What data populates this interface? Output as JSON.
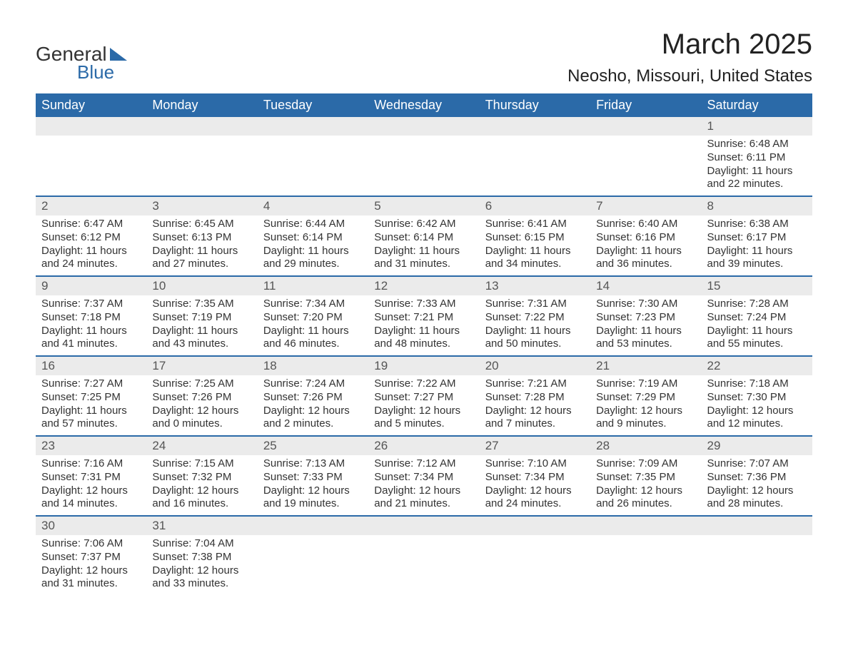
{
  "logo": {
    "word1": "General",
    "word2": "Blue",
    "brand_color": "#2b6aa8",
    "text_color": "#333333"
  },
  "header": {
    "title": "March 2025",
    "location": "Neosho, Missouri, United States"
  },
  "calendar": {
    "header_bg": "#2b6aa8",
    "header_fg": "#ffffff",
    "daynum_bg": "#ebebeb",
    "row_border": "#2b6aa8",
    "body_fg": "#333333",
    "columns": [
      "Sunday",
      "Monday",
      "Tuesday",
      "Wednesday",
      "Thursday",
      "Friday",
      "Saturday"
    ],
    "weeks": [
      [
        null,
        null,
        null,
        null,
        null,
        null,
        {
          "n": "1",
          "sunrise": "Sunrise: 6:48 AM",
          "sunset": "Sunset: 6:11 PM",
          "day1": "Daylight: 11 hours",
          "day2": "and 22 minutes."
        }
      ],
      [
        {
          "n": "2",
          "sunrise": "Sunrise: 6:47 AM",
          "sunset": "Sunset: 6:12 PM",
          "day1": "Daylight: 11 hours",
          "day2": "and 24 minutes."
        },
        {
          "n": "3",
          "sunrise": "Sunrise: 6:45 AM",
          "sunset": "Sunset: 6:13 PM",
          "day1": "Daylight: 11 hours",
          "day2": "and 27 minutes."
        },
        {
          "n": "4",
          "sunrise": "Sunrise: 6:44 AM",
          "sunset": "Sunset: 6:14 PM",
          "day1": "Daylight: 11 hours",
          "day2": "and 29 minutes."
        },
        {
          "n": "5",
          "sunrise": "Sunrise: 6:42 AM",
          "sunset": "Sunset: 6:14 PM",
          "day1": "Daylight: 11 hours",
          "day2": "and 31 minutes."
        },
        {
          "n": "6",
          "sunrise": "Sunrise: 6:41 AM",
          "sunset": "Sunset: 6:15 PM",
          "day1": "Daylight: 11 hours",
          "day2": "and 34 minutes."
        },
        {
          "n": "7",
          "sunrise": "Sunrise: 6:40 AM",
          "sunset": "Sunset: 6:16 PM",
          "day1": "Daylight: 11 hours",
          "day2": "and 36 minutes."
        },
        {
          "n": "8",
          "sunrise": "Sunrise: 6:38 AM",
          "sunset": "Sunset: 6:17 PM",
          "day1": "Daylight: 11 hours",
          "day2": "and 39 minutes."
        }
      ],
      [
        {
          "n": "9",
          "sunrise": "Sunrise: 7:37 AM",
          "sunset": "Sunset: 7:18 PM",
          "day1": "Daylight: 11 hours",
          "day2": "and 41 minutes."
        },
        {
          "n": "10",
          "sunrise": "Sunrise: 7:35 AM",
          "sunset": "Sunset: 7:19 PM",
          "day1": "Daylight: 11 hours",
          "day2": "and 43 minutes."
        },
        {
          "n": "11",
          "sunrise": "Sunrise: 7:34 AM",
          "sunset": "Sunset: 7:20 PM",
          "day1": "Daylight: 11 hours",
          "day2": "and 46 minutes."
        },
        {
          "n": "12",
          "sunrise": "Sunrise: 7:33 AM",
          "sunset": "Sunset: 7:21 PM",
          "day1": "Daylight: 11 hours",
          "day2": "and 48 minutes."
        },
        {
          "n": "13",
          "sunrise": "Sunrise: 7:31 AM",
          "sunset": "Sunset: 7:22 PM",
          "day1": "Daylight: 11 hours",
          "day2": "and 50 minutes."
        },
        {
          "n": "14",
          "sunrise": "Sunrise: 7:30 AM",
          "sunset": "Sunset: 7:23 PM",
          "day1": "Daylight: 11 hours",
          "day2": "and 53 minutes."
        },
        {
          "n": "15",
          "sunrise": "Sunrise: 7:28 AM",
          "sunset": "Sunset: 7:24 PM",
          "day1": "Daylight: 11 hours",
          "day2": "and 55 minutes."
        }
      ],
      [
        {
          "n": "16",
          "sunrise": "Sunrise: 7:27 AM",
          "sunset": "Sunset: 7:25 PM",
          "day1": "Daylight: 11 hours",
          "day2": "and 57 minutes."
        },
        {
          "n": "17",
          "sunrise": "Sunrise: 7:25 AM",
          "sunset": "Sunset: 7:26 PM",
          "day1": "Daylight: 12 hours",
          "day2": "and 0 minutes."
        },
        {
          "n": "18",
          "sunrise": "Sunrise: 7:24 AM",
          "sunset": "Sunset: 7:26 PM",
          "day1": "Daylight: 12 hours",
          "day2": "and 2 minutes."
        },
        {
          "n": "19",
          "sunrise": "Sunrise: 7:22 AM",
          "sunset": "Sunset: 7:27 PM",
          "day1": "Daylight: 12 hours",
          "day2": "and 5 minutes."
        },
        {
          "n": "20",
          "sunrise": "Sunrise: 7:21 AM",
          "sunset": "Sunset: 7:28 PM",
          "day1": "Daylight: 12 hours",
          "day2": "and 7 minutes."
        },
        {
          "n": "21",
          "sunrise": "Sunrise: 7:19 AM",
          "sunset": "Sunset: 7:29 PM",
          "day1": "Daylight: 12 hours",
          "day2": "and 9 minutes."
        },
        {
          "n": "22",
          "sunrise": "Sunrise: 7:18 AM",
          "sunset": "Sunset: 7:30 PM",
          "day1": "Daylight: 12 hours",
          "day2": "and 12 minutes."
        }
      ],
      [
        {
          "n": "23",
          "sunrise": "Sunrise: 7:16 AM",
          "sunset": "Sunset: 7:31 PM",
          "day1": "Daylight: 12 hours",
          "day2": "and 14 minutes."
        },
        {
          "n": "24",
          "sunrise": "Sunrise: 7:15 AM",
          "sunset": "Sunset: 7:32 PM",
          "day1": "Daylight: 12 hours",
          "day2": "and 16 minutes."
        },
        {
          "n": "25",
          "sunrise": "Sunrise: 7:13 AM",
          "sunset": "Sunset: 7:33 PM",
          "day1": "Daylight: 12 hours",
          "day2": "and 19 minutes."
        },
        {
          "n": "26",
          "sunrise": "Sunrise: 7:12 AM",
          "sunset": "Sunset: 7:34 PM",
          "day1": "Daylight: 12 hours",
          "day2": "and 21 minutes."
        },
        {
          "n": "27",
          "sunrise": "Sunrise: 7:10 AM",
          "sunset": "Sunset: 7:34 PM",
          "day1": "Daylight: 12 hours",
          "day2": "and 24 minutes."
        },
        {
          "n": "28",
          "sunrise": "Sunrise: 7:09 AM",
          "sunset": "Sunset: 7:35 PM",
          "day1": "Daylight: 12 hours",
          "day2": "and 26 minutes."
        },
        {
          "n": "29",
          "sunrise": "Sunrise: 7:07 AM",
          "sunset": "Sunset: 7:36 PM",
          "day1": "Daylight: 12 hours",
          "day2": "and 28 minutes."
        }
      ],
      [
        {
          "n": "30",
          "sunrise": "Sunrise: 7:06 AM",
          "sunset": "Sunset: 7:37 PM",
          "day1": "Daylight: 12 hours",
          "day2": "and 31 minutes."
        },
        {
          "n": "31",
          "sunrise": "Sunrise: 7:04 AM",
          "sunset": "Sunset: 7:38 PM",
          "day1": "Daylight: 12 hours",
          "day2": "and 33 minutes."
        },
        null,
        null,
        null,
        null,
        null
      ]
    ]
  }
}
